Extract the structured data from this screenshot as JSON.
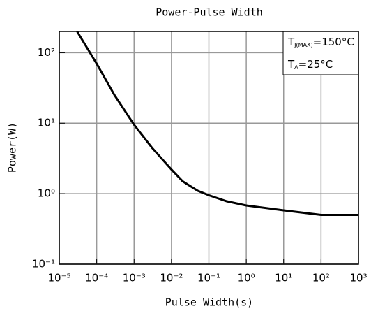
{
  "chart_data": {
    "type": "line",
    "title": "Power-Pulse Width",
    "xlabel": "Pulse Width(s)",
    "ylabel": "Power(W)",
    "x": [
      3e-05,
      0.0001,
      0.0003,
      0.001,
      0.003,
      0.01,
      0.02,
      0.05,
      0.1,
      0.3,
      1,
      10,
      100,
      1000
    ],
    "values": [
      200,
      70,
      25,
      9.5,
      4.5,
      2.2,
      1.5,
      1.1,
      0.95,
      0.78,
      0.68,
      0.58,
      0.5,
      0.5
    ],
    "color": "#000000",
    "xlog": true,
    "ylog": true,
    "grid": true,
    "xlim": [
      1e-05,
      1000
    ],
    "ylim": [
      0.1,
      200
    ],
    "xticks": [
      {
        "value": 1e-05,
        "label": "10⁻⁵"
      },
      {
        "value": 0.0001,
        "label": "10⁻⁴"
      },
      {
        "value": 0.001,
        "label": "10⁻³"
      },
      {
        "value": 0.01,
        "label": "10⁻²"
      },
      {
        "value": 0.1,
        "label": "10⁻¹"
      },
      {
        "value": 1,
        "label": "10⁰"
      },
      {
        "value": 10,
        "label": "10¹"
      },
      {
        "value": 100,
        "label": "10²"
      },
      {
        "value": 1000,
        "label": "10³"
      }
    ],
    "yticks": [
      {
        "value": 0.1,
        "label": "10⁻¹"
      },
      {
        "value": 1,
        "label": "10⁰"
      },
      {
        "value": 10,
        "label": "10¹"
      },
      {
        "value": 100,
        "label": "10²"
      }
    ],
    "annotations": [
      {
        "main": "T",
        "sub": "J(MAX)",
        "tail": "=150°C"
      },
      {
        "main": "T",
        "sub": "A",
        "tail": "=25°C"
      }
    ]
  }
}
